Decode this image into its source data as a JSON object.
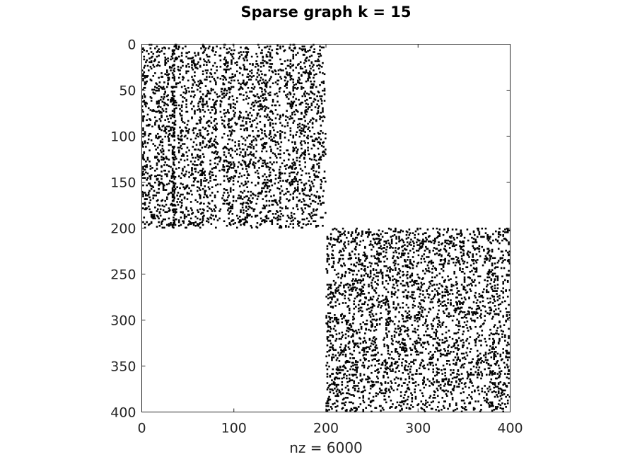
{
  "chart_data": {
    "type": "spy",
    "title": "Sparse graph k = 15",
    "xlabel": "nz = 6000",
    "ylabel": "",
    "xlim": [
      0,
      400
    ],
    "ylim": [
      0,
      400
    ],
    "y_reversed": true,
    "xticks": [
      0,
      100,
      200,
      300,
      400
    ],
    "yticks": [
      0,
      50,
      100,
      150,
      200,
      250,
      300,
      350,
      400
    ],
    "xtick_labels": [
      "0",
      "100",
      "200",
      "300",
      "400"
    ],
    "ytick_labels": [
      "0",
      "50",
      "100",
      "150",
      "200",
      "250",
      "300",
      "350",
      "400"
    ],
    "grid": false,
    "legend": "none",
    "nz": 6000,
    "marker_color": "#000000",
    "blocks": [
      {
        "name": "upper-left block",
        "rows": [
          1,
          200
        ],
        "cols": [
          1,
          200
        ],
        "nonzeros": 3000,
        "pattern": "column-banded"
      },
      {
        "name": "lower-right block",
        "rows": [
          201,
          400
        ],
        "cols": [
          201,
          400
        ],
        "nonzeros": 3000,
        "pattern": "uniform"
      }
    ]
  }
}
